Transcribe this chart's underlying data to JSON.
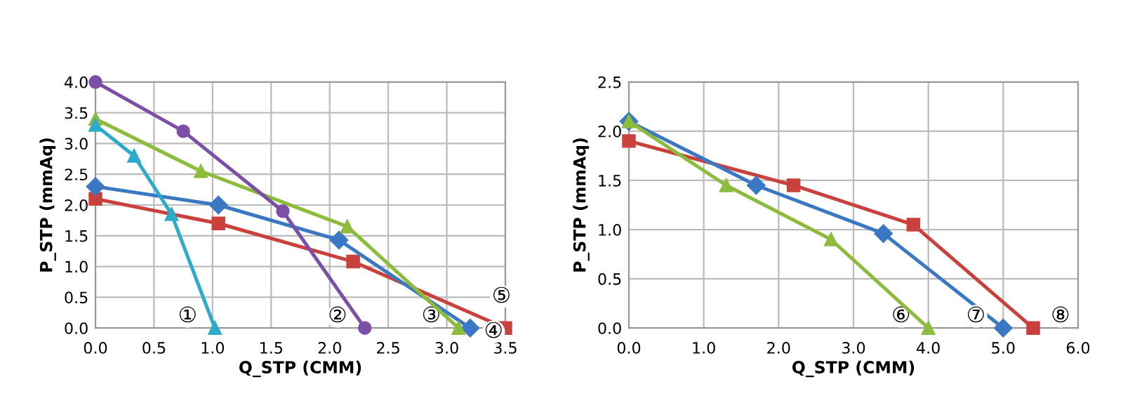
{
  "chart_data": [
    {
      "type": "line",
      "xlabel": "Q_STP (CMM)",
      "ylabel": "P_STP (mmAq)",
      "grid": true,
      "xlim": [
        0,
        3.5
      ],
      "ylim": [
        0,
        4
      ],
      "xticks": [
        {
          "value": 0,
          "label": "0.0"
        },
        {
          "value": 0.5,
          "label": "0.5"
        },
        {
          "value": 1,
          "label": "1.0"
        },
        {
          "value": 1.5,
          "label": "1.5"
        },
        {
          "value": 2,
          "label": "2.0"
        },
        {
          "value": 2.5,
          "label": "2.5"
        },
        {
          "value": 3,
          "label": "3.0"
        },
        {
          "value": 3.5,
          "label": "3.5"
        }
      ],
      "yticks": [
        {
          "value": 0,
          "label": "0.0"
        },
        {
          "value": 0.5,
          "label": "0.5"
        },
        {
          "value": 1,
          "label": "1.0"
        },
        {
          "value": 1.5,
          "label": "1.5"
        },
        {
          "value": 2,
          "label": "2.0"
        },
        {
          "value": 2.5,
          "label": "2.5"
        },
        {
          "value": 3,
          "label": "3.0"
        },
        {
          "value": 3.5,
          "label": "3.5"
        },
        {
          "value": 4,
          "label": "4.0"
        }
      ],
      "series": [
        {
          "color": "#2eaacb",
          "marker": "triangle",
          "x": [
            0,
            0.33,
            0.65,
            1.02
          ],
          "values": [
            3.3,
            2.8,
            1.85,
            0
          ]
        },
        {
          "color": "#7b4fa8",
          "marker": "circle",
          "x": [
            0,
            0.75,
            1.6,
            2.3
          ],
          "values": [
            4.0,
            3.2,
            1.9,
            0
          ]
        },
        {
          "color": "#8dbb3c",
          "marker": "triangle",
          "x": [
            0,
            0.9,
            2.15,
            3.1
          ],
          "values": [
            3.4,
            2.55,
            1.65,
            0
          ]
        },
        {
          "color": "#3a78c4",
          "marker": "diamond",
          "x": [
            0,
            1.05,
            2.08,
            3.2
          ],
          "values": [
            2.3,
            2.0,
            1.43,
            0
          ]
        },
        {
          "color": "#c9413c",
          "marker": "square",
          "x": [
            0,
            1.05,
            2.2,
            3.5
          ],
          "values": [
            2.1,
            1.7,
            1.08,
            0
          ]
        }
      ],
      "annotations": [
        {
          "text": "①",
          "x": 1.02,
          "y": 0
        },
        {
          "text": "②",
          "x": 2.3,
          "y": 0
        },
        {
          "text": "③",
          "x": 3.1,
          "y": 0
        },
        {
          "text": "④",
          "x": 3.2,
          "y": 0
        },
        {
          "text": "⑤",
          "x": 3.5,
          "y": 0
        }
      ]
    },
    {
      "type": "line",
      "xlabel": "Q_STP (CMM)",
      "ylabel": "P_STP (mmAq)",
      "grid": true,
      "xlim": [
        0,
        6
      ],
      "ylim": [
        0,
        2.5
      ],
      "xticks": [
        {
          "value": 0,
          "label": "0.0"
        },
        {
          "value": 1,
          "label": "1.0"
        },
        {
          "value": 2,
          "label": "2.0"
        },
        {
          "value": 3,
          "label": "3.0"
        },
        {
          "value": 4,
          "label": "4.0"
        },
        {
          "value": 5,
          "label": "5.0"
        },
        {
          "value": 6,
          "label": "6.0"
        }
      ],
      "yticks": [
        {
          "value": 0,
          "label": "0.0"
        },
        {
          "value": 0.5,
          "label": "0.5"
        },
        {
          "value": 1,
          "label": "1.0"
        },
        {
          "value": 1.5,
          "label": "1.5"
        },
        {
          "value": 2,
          "label": "2.0"
        },
        {
          "value": 2.5,
          "label": "2.5"
        }
      ],
      "series": [
        {
          "color": "#8dbb3c",
          "marker": "triangle",
          "x": [
            0,
            1.3,
            2.7,
            4.0
          ],
          "values": [
            2.1,
            1.45,
            0.9,
            0
          ]
        },
        {
          "color": "#3a78c4",
          "marker": "diamond",
          "x": [
            0,
            1.7,
            3.4,
            5.0
          ],
          "values": [
            2.1,
            1.45,
            0.96,
            0
          ]
        },
        {
          "color": "#c9413c",
          "marker": "square",
          "x": [
            0,
            2.2,
            3.8,
            5.4
          ],
          "values": [
            1.9,
            1.45,
            1.05,
            0
          ]
        }
      ],
      "annotations": [
        {
          "text": "⑥",
          "x": 4.0,
          "y": 0
        },
        {
          "text": "⑦",
          "x": 5.0,
          "y": 0
        },
        {
          "text": "⑧",
          "x": 5.4,
          "y": 0
        }
      ]
    }
  ]
}
